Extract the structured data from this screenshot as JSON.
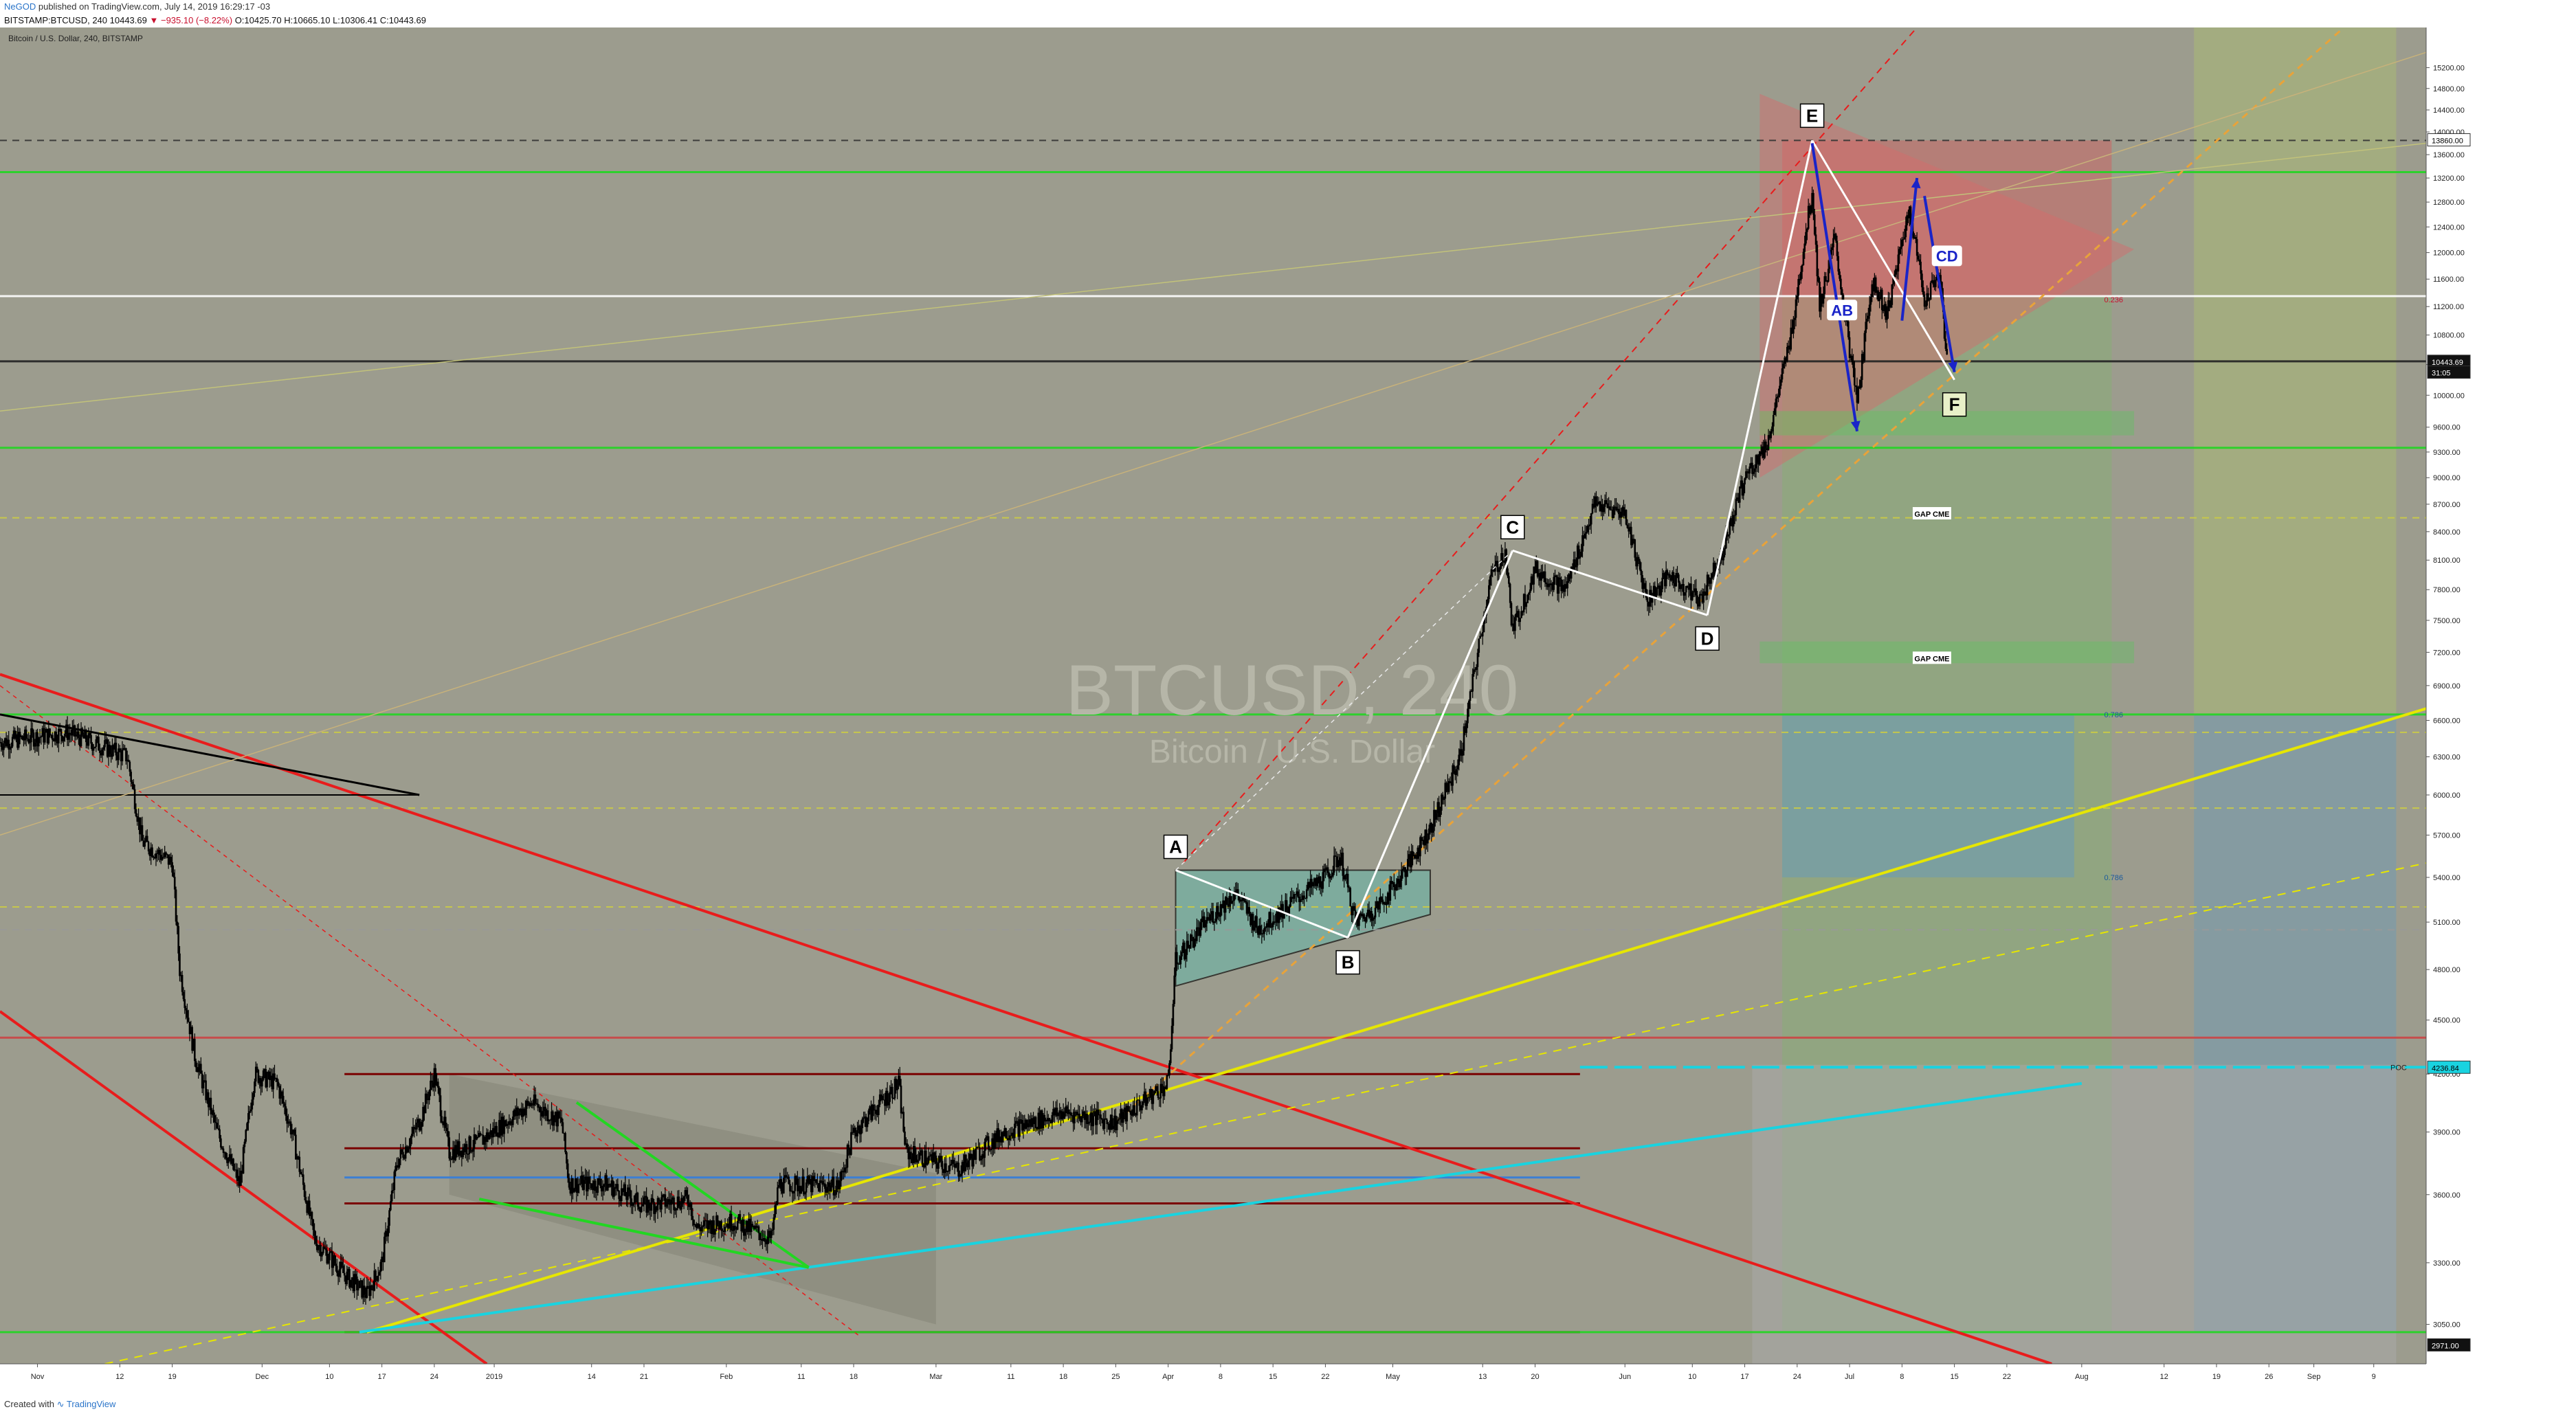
{
  "header": {
    "author": "NeGOD",
    "published": "published on TradingView.com, July 14, 2019 16:29:17 -03",
    "symbol_line": "BITSTAMP:BTCUSD, 240",
    "ohlc_prefix": "10443.69",
    "change": "▼ −935.10 (−8.22%)",
    "ohlc_rest": "O:10425.70 H:10665.10 L:10306.41 C:10443.69"
  },
  "chart_title_small": "Bitcoin / U.S. Dollar, 240, BITSTAMP",
  "watermark": {
    "symbol": "BTCUSD, 240",
    "name": "Bitcoin / U.S. Dollar"
  },
  "footer": {
    "credit": "Created with",
    "brand": "TradingView"
  },
  "colors": {
    "background": "#9c9c8e",
    "candle": "#000000",
    "green_level": "#22d622",
    "red_channel": "#e81c1c",
    "yellow_trend": "#e6e600",
    "cyan_trend": "#19d3e0",
    "pattern_line": "#ffffff",
    "arrow": "#1a24c8",
    "red_zone": "#d45a5a",
    "green_zone": "#7db86a",
    "blue_zone": "#6a9bb8"
  },
  "chart_data": {
    "type": "candlestick",
    "title": "BTCUSD, 240",
    "subtitle": "Bitcoin / U.S. Dollar",
    "ylim": [
      2900,
      16000
    ],
    "y_scale": "log",
    "xlim": [
      "2018-10-27",
      "2019-09-16"
    ],
    "price_ticks": [
      "15200.00",
      "14800.00",
      "14400.00",
      "14000.00",
      "13600.00",
      "13200.00",
      "12800.00",
      "12400.00",
      "12000.00",
      "11600.00",
      "11200.00",
      "10800.00",
      "10400.00",
      "10000.00",
      "9600.00",
      "9300.00",
      "9000.00",
      "8700.00",
      "8400.00",
      "8100.00",
      "7800.00",
      "7500.00",
      "7200.00",
      "6900.00",
      "6600.00",
      "6300.00",
      "6000.00",
      "5700.00",
      "5400.00",
      "5100.00",
      "4800.00",
      "4500.00",
      "4200.00",
      "3900.00",
      "3600.00",
      "3300.00",
      "3050.00"
    ],
    "time_ticks": [
      {
        "label": "Nov",
        "date": "2018-11-01"
      },
      {
        "label": "12",
        "date": "2018-11-12"
      },
      {
        "label": "19",
        "date": "2018-11-19"
      },
      {
        "label": "Dec",
        "date": "2018-12-01"
      },
      {
        "label": "10",
        "date": "2018-12-10"
      },
      {
        "label": "17",
        "date": "2018-12-17"
      },
      {
        "label": "24",
        "date": "2018-12-24"
      },
      {
        "label": "2019",
        "date": "2019-01-01"
      },
      {
        "label": "14",
        "date": "2019-01-14"
      },
      {
        "label": "21",
        "date": "2019-01-21"
      },
      {
        "label": "Feb",
        "date": "2019-02-01"
      },
      {
        "label": "11",
        "date": "2019-02-11"
      },
      {
        "label": "18",
        "date": "2019-02-18"
      },
      {
        "label": "Mar",
        "date": "2019-03-01"
      },
      {
        "label": "11",
        "date": "2019-03-11"
      },
      {
        "label": "18",
        "date": "2019-03-18"
      },
      {
        "label": "25",
        "date": "2019-03-25"
      },
      {
        "label": "Apr",
        "date": "2019-04-01"
      },
      {
        "label": "8",
        "date": "2019-04-08"
      },
      {
        "label": "15",
        "date": "2019-04-15"
      },
      {
        "label": "22",
        "date": "2019-04-22"
      },
      {
        "label": "May",
        "date": "2019-05-01"
      },
      {
        "label": "13",
        "date": "2019-05-13"
      },
      {
        "label": "20",
        "date": "2019-05-20"
      },
      {
        "label": "Jun",
        "date": "2019-06-01"
      },
      {
        "label": "10",
        "date": "2019-06-10"
      },
      {
        "label": "17",
        "date": "2019-06-17"
      },
      {
        "label": "24",
        "date": "2019-06-24"
      },
      {
        "label": "Jul",
        "date": "2019-07-01"
      },
      {
        "label": "8",
        "date": "2019-07-08"
      },
      {
        "label": "15",
        "date": "2019-07-15"
      },
      {
        "label": "22",
        "date": "2019-07-22"
      },
      {
        "label": "Aug",
        "date": "2019-08-01"
      },
      {
        "label": "12",
        "date": "2019-08-12"
      },
      {
        "label": "19",
        "date": "2019-08-19"
      },
      {
        "label": "26",
        "date": "2019-08-26"
      },
      {
        "label": "Sep",
        "date": "2019-09-01"
      },
      {
        "label": "9",
        "date": "2019-09-09"
      }
    ],
    "price_path": [
      {
        "date": "2018-10-27",
        "close": 6420
      },
      {
        "date": "2018-11-05",
        "close": 6500
      },
      {
        "date": "2018-11-13",
        "close": 6300
      },
      {
        "date": "2018-11-15",
        "close": 5650
      },
      {
        "date": "2018-11-19",
        "close": 5500
      },
      {
        "date": "2018-11-20",
        "close": 4800
      },
      {
        "date": "2018-11-22",
        "close": 4300
      },
      {
        "date": "2018-11-25",
        "close": 3900
      },
      {
        "date": "2018-11-28",
        "close": 3650
      },
      {
        "date": "2018-11-30",
        "close": 4200
      },
      {
        "date": "2018-12-03",
        "close": 4150
      },
      {
        "date": "2018-12-05",
        "close": 3900
      },
      {
        "date": "2018-12-08",
        "close": 3400
      },
      {
        "date": "2018-12-12",
        "close": 3250
      },
      {
        "date": "2018-12-15",
        "close": 3170
      },
      {
        "date": "2018-12-17",
        "close": 3300
      },
      {
        "date": "2018-12-19",
        "close": 3750
      },
      {
        "date": "2018-12-22",
        "close": 3950
      },
      {
        "date": "2018-12-24",
        "close": 4200
      },
      {
        "date": "2018-12-26",
        "close": 3800
      },
      {
        "date": "2018-12-30",
        "close": 3850
      },
      {
        "date": "2019-01-06",
        "close": 4050
      },
      {
        "date": "2019-01-10",
        "close": 3950
      },
      {
        "date": "2019-01-11",
        "close": 3650
      },
      {
        "date": "2019-01-16",
        "close": 3650
      },
      {
        "date": "2019-01-21",
        "close": 3550
      },
      {
        "date": "2019-01-27",
        "close": 3580
      },
      {
        "date": "2019-01-28",
        "close": 3450
      },
      {
        "date": "2019-02-02",
        "close": 3480
      },
      {
        "date": "2019-02-07",
        "close": 3400
      },
      {
        "date": "2019-02-08",
        "close": 3650
      },
      {
        "date": "2019-02-16",
        "close": 3640
      },
      {
        "date": "2019-02-18",
        "close": 3900
      },
      {
        "date": "2019-02-24",
        "close": 4150
      },
      {
        "date": "2019-02-25",
        "close": 3800
      },
      {
        "date": "2019-03-04",
        "close": 3720
      },
      {
        "date": "2019-03-10",
        "close": 3900
      },
      {
        "date": "2019-03-18",
        "close": 4000
      },
      {
        "date": "2019-03-25",
        "close": 3950
      },
      {
        "date": "2019-04-01",
        "close": 4150
      },
      {
        "date": "2019-04-02",
        "close": 4850
      },
      {
        "date": "2019-04-06",
        "close": 5100
      },
      {
        "date": "2019-04-10",
        "close": 5300
      },
      {
        "date": "2019-04-13",
        "close": 5050
      },
      {
        "date": "2019-04-18",
        "close": 5250
      },
      {
        "date": "2019-04-22",
        "close": 5400
      },
      {
        "date": "2019-04-24",
        "close": 5550
      },
      {
        "date": "2019-04-26",
        "close": 5100
      },
      {
        "date": "2019-04-29",
        "close": 5200
      },
      {
        "date": "2019-05-02",
        "close": 5400
      },
      {
        "date": "2019-05-06",
        "close": 5750
      },
      {
        "date": "2019-05-10",
        "close": 6300
      },
      {
        "date": "2019-05-12",
        "close": 7050
      },
      {
        "date": "2019-05-14",
        "close": 7900
      },
      {
        "date": "2019-05-16",
        "close": 8200
      },
      {
        "date": "2019-05-17",
        "close": 7400
      },
      {
        "date": "2019-05-20",
        "close": 8000
      },
      {
        "date": "2019-05-24",
        "close": 7800
      },
      {
        "date": "2019-05-28",
        "close": 8700
      },
      {
        "date": "2019-06-01",
        "close": 8600
      },
      {
        "date": "2019-06-04",
        "close": 7700
      },
      {
        "date": "2019-06-07",
        "close": 7950
      },
      {
        "date": "2019-06-11",
        "close": 7700
      },
      {
        "date": "2019-06-14",
        "close": 8200
      },
      {
        "date": "2019-06-17",
        "close": 9000
      },
      {
        "date": "2019-06-20",
        "close": 9400
      },
      {
        "date": "2019-06-23",
        "close": 10700
      },
      {
        "date": "2019-06-26",
        "close": 13000
      },
      {
        "date": "2019-06-27",
        "close": 11200
      },
      {
        "date": "2019-06-29",
        "close": 12200
      },
      {
        "date": "2019-07-02",
        "close": 9900
      },
      {
        "date": "2019-07-04",
        "close": 11600
      },
      {
        "date": "2019-07-06",
        "close": 11100
      },
      {
        "date": "2019-07-09",
        "close": 12700
      },
      {
        "date": "2019-07-11",
        "close": 11300
      },
      {
        "date": "2019-07-13",
        "close": 11700
      },
      {
        "date": "2019-07-14",
        "close": 10443.69
      }
    ],
    "pattern_points": [
      {
        "label": "A",
        "date": "2019-04-02",
        "price": 5450
      },
      {
        "label": "B",
        "date": "2019-04-25",
        "price": 5000
      },
      {
        "label": "C",
        "date": "2019-05-17",
        "price": 8200
      },
      {
        "label": "D",
        "date": "2019-06-12",
        "price": 7550
      },
      {
        "label": "E",
        "date": "2019-06-26",
        "price": 13850
      },
      {
        "label": "F",
        "date": "2019-07-15",
        "price": 10200
      }
    ],
    "wave_labels": [
      {
        "label": "AB",
        "date": "2019-06-30",
        "price": 11150
      },
      {
        "label": "CD",
        "date": "2019-07-14",
        "price": 11950
      }
    ],
    "gap_labels": [
      {
        "label": "GAP CME",
        "date": "2019-07-12",
        "price": 8600
      },
      {
        "label": "GAP CME",
        "date": "2019-07-12",
        "price": 7150
      }
    ],
    "horizontal_levels": [
      {
        "price": 13300,
        "color": "#22d622"
      },
      {
        "price": 13850,
        "color": "#333333"
      },
      {
        "price": 11350,
        "color": "#ffffff"
      },
      {
        "price": 10443.69,
        "color": "#222222"
      },
      {
        "price": 9350,
        "color": "#22d622"
      },
      {
        "price": 8550,
        "color": "#cccc44"
      },
      {
        "price": 6650,
        "color": "#22d622"
      },
      {
        "price": 6500,
        "color": "#cccc44"
      },
      {
        "price": 5900,
        "color": "#cccc44"
      },
      {
        "price": 5200,
        "color": "#cccc44"
      },
      {
        "price": 5050,
        "color": "#999"
      },
      {
        "price": 4400,
        "color": "#cc4444"
      },
      {
        "price": 3020,
        "color": "#22d622"
      }
    ],
    "axis_tags": [
      {
        "text": "13860.00",
        "price": 13860
      },
      {
        "text": "10443.69",
        "price": 10443.69
      },
      {
        "text": "31:05",
        "price": 10300
      },
      {
        "text": "4236.84",
        "price": 4236.84
      },
      {
        "text": "2971.00",
        "price": 2971
      },
      {
        "text": "POC",
        "price": 4236.84
      }
    ],
    "fib_labels": [
      {
        "text": "0.236",
        "price": 11300
      },
      {
        "text": "0.786",
        "price": 6650
      },
      {
        "text": "0.786",
        "price": 5400
      }
    ]
  }
}
